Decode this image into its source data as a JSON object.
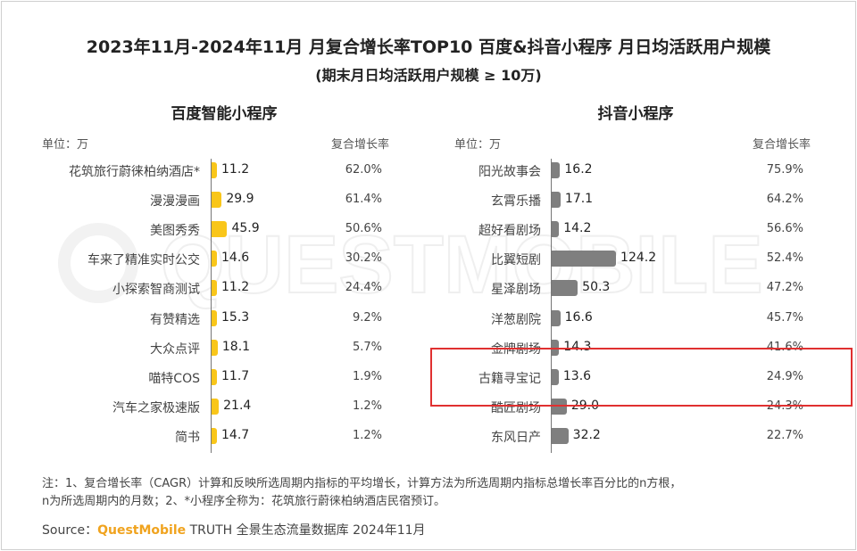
{
  "title": "2023年11月-2024年11月 月复合增长率TOP10 百度&抖音小程序 月日均活跃用户规模",
  "subtitle": "(期末月日均活跃用户规模 ≥ 10万)",
  "watermark": "QUESTMOBILE",
  "colors": {
    "baidu_bar": "#f9c61a",
    "douyin_bar": "#7f7f7f",
    "highlight": "#e03030",
    "brand": "#f0a31e"
  },
  "chart_data": [
    {
      "type": "bar",
      "orientation": "horizontal",
      "title": "百度智能小程序",
      "unit_label": "单位：万",
      "cagr_header": "复合增长率",
      "categories": [
        "花筑旅行蔚徕柏纳酒店*",
        "漫漫漫画",
        "美图秀秀",
        "车来了精准实时公交",
        "小探索智商测试",
        "有赞精选",
        "大众点评",
        "喵特COS",
        "汽车之家极速版",
        "简书"
      ],
      "values": [
        11.2,
        29.9,
        45.9,
        14.6,
        11.2,
        15.3,
        18.1,
        11.7,
        21.4,
        14.7
      ],
      "value_labels": [
        "11.2",
        "29.9",
        "45.9",
        "14.6",
        "11.2",
        "15.3",
        "18.1",
        "11.7",
        "21.4",
        "14.7"
      ],
      "cagr": [
        "62.0%",
        "61.4%",
        "50.6%",
        "30.2%",
        "24.4%",
        "9.2%",
        "5.7%",
        "1.9%",
        "1.2%",
        "1.2%"
      ]
    },
    {
      "type": "bar",
      "orientation": "horizontal",
      "title": "抖音小程序",
      "unit_label": "单位：万",
      "cagr_header": "复合增长率",
      "categories": [
        "阳光故事会",
        "玄霄乐播",
        "超好看剧场",
        "比翼短剧",
        "星泽剧场",
        "洋葱剧院",
        "金牌剧场",
        "古籍寻宝记",
        "酷匠剧场",
        "东风日产"
      ],
      "values": [
        16.2,
        17.1,
        14.2,
        124.2,
        50.3,
        16.6,
        14.3,
        13.6,
        29.0,
        32.2
      ],
      "value_labels": [
        "16.2",
        "17.1",
        "14.2",
        "124.2",
        "50.3",
        "16.6",
        "14.3",
        "13.6",
        "29.0",
        "32.2"
      ],
      "cagr": [
        "75.9%",
        "64.2%",
        "56.6%",
        "52.4%",
        "47.2%",
        "45.7%",
        "41.6%",
        "24.9%",
        "24.3%",
        "22.7%"
      ],
      "highlighted_category": "古籍寻宝记"
    }
  ],
  "notes": {
    "line1": "注：1、复合增长率（CAGR）计算和反映所选周期内指标的平均增长，计算方法为所选周期内指标总增长率百分比的n方根，",
    "line2": "n为所选周期内的月数；2、*小程序全称为：花筑旅行蔚徕柏纳酒店民宿预订。"
  },
  "source": {
    "prefix": "Source：",
    "brand": "QuestMobile",
    "rest": " TRUTH 全景生态流量数据库 2024年11月"
  }
}
